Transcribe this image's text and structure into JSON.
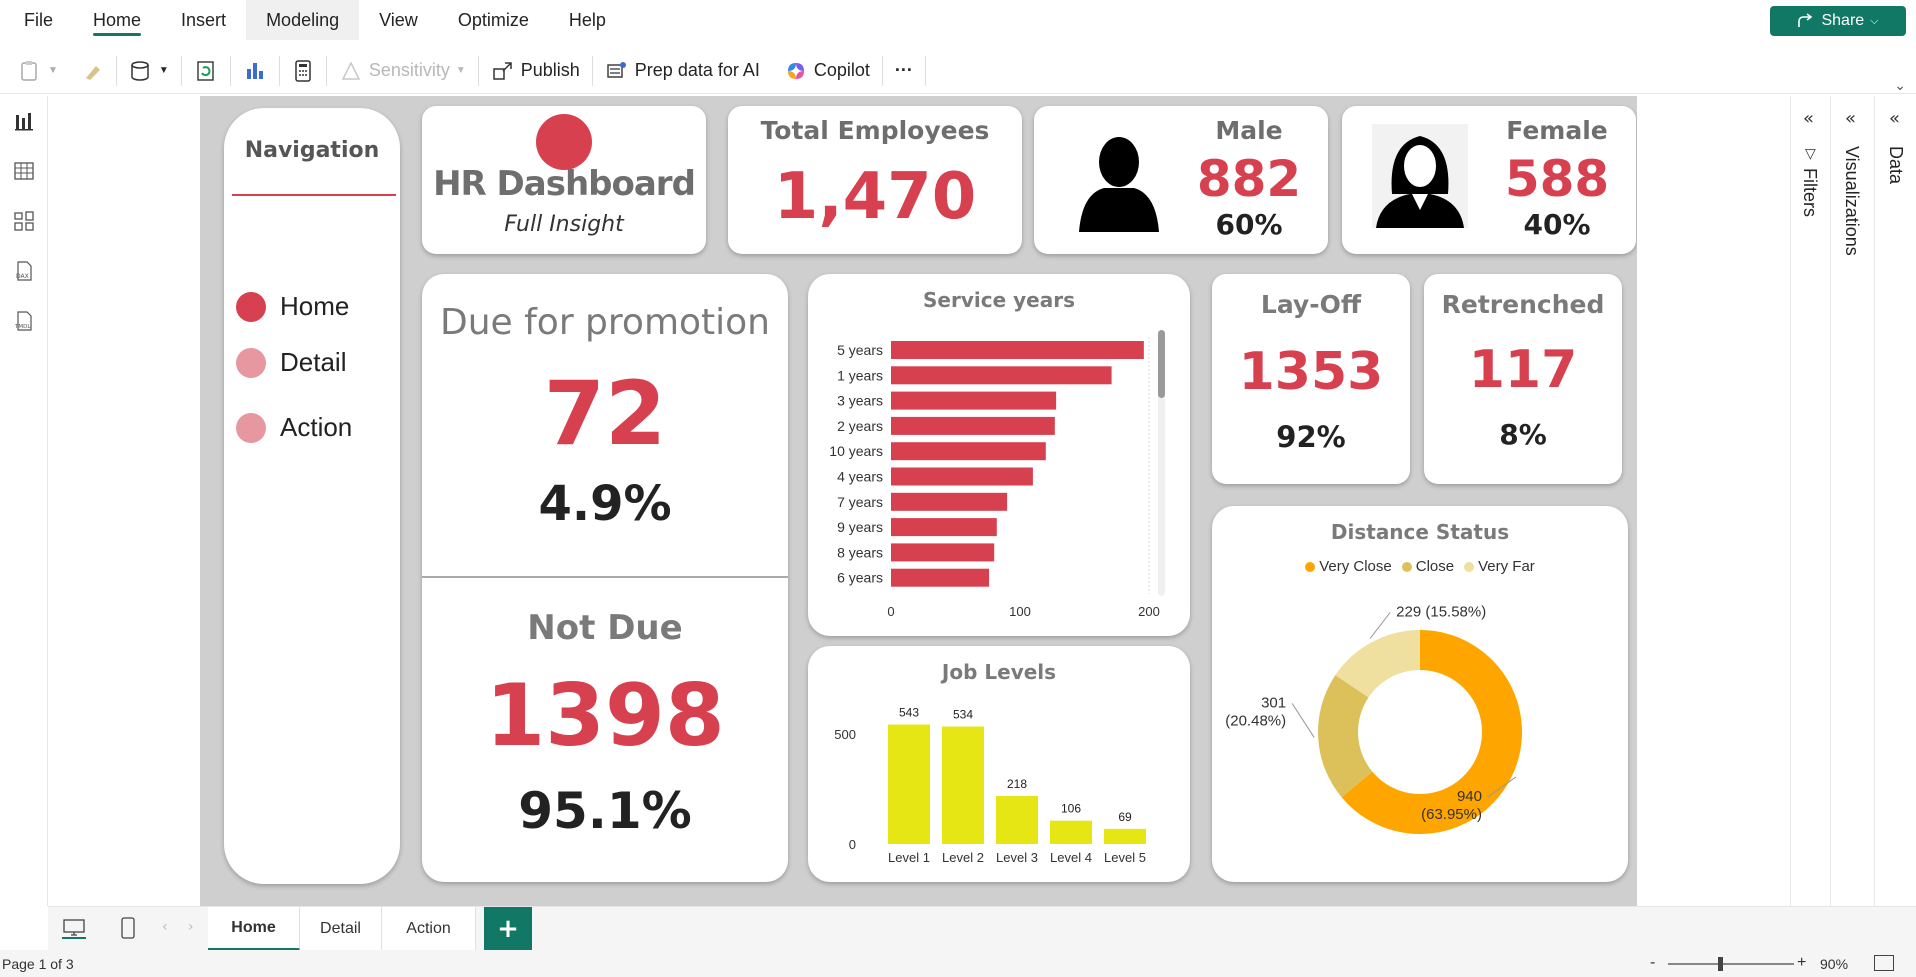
{
  "menu": {
    "items": [
      "File",
      "Home",
      "Insert",
      "Modeling",
      "View",
      "Optimize",
      "Help"
    ],
    "share_label": "Share"
  },
  "ribbon": {
    "sensitivity_label": "Sensitivity",
    "publish_label": "Publish",
    "prep_label": "Prep data for AI",
    "copilot_label": "Copilot",
    "more_label": "···"
  },
  "navigation": {
    "title": "Navigation",
    "items": [
      "Home",
      "Detail",
      "Action"
    ]
  },
  "title_card": {
    "title": "HR Dashboard",
    "subtitle": "Full Insight"
  },
  "total_employees": {
    "label": "Total Employees",
    "value": "1,470"
  },
  "male": {
    "label": "Male",
    "value": "882",
    "pct": "60%"
  },
  "female": {
    "label": "Female",
    "value": "588",
    "pct": "40%"
  },
  "promotion": {
    "due_label": "Due for promotion",
    "due_value": "72",
    "due_pct": "4.9%",
    "notdue_label": "Not Due",
    "notdue_value": "1398",
    "notdue_pct": "95.1%"
  },
  "layoff": {
    "label": "Lay-Off",
    "value": "1353",
    "pct": "92%"
  },
  "retrenched": {
    "label": "Retrenched",
    "value": "117",
    "pct": "8%"
  },
  "colors": {
    "accent": "#d6404f",
    "brand": "#117865",
    "yellow": "#e5e613",
    "orange": "#ffa500",
    "gold": "#dcc15a",
    "pale": "#efe0a0"
  },
  "chart_data": [
    {
      "type": "bar",
      "title": "Service years",
      "orientation": "horizontal",
      "categories": [
        "5 years",
        "1 years",
        "3 years",
        "2 years",
        "10 years",
        "4 years",
        "7 years",
        "9 years",
        "8 years",
        "6 years"
      ],
      "values": [
        196,
        171,
        128,
        127,
        120,
        110,
        90,
        82,
        80,
        76
      ],
      "xticks": [
        "0",
        "100",
        "200"
      ],
      "xlim": [
        0,
        200
      ],
      "grid": false
    },
    {
      "type": "bar",
      "title": "Job Levels",
      "categories": [
        "Level 1",
        "Level 2",
        "Level 3",
        "Level 4",
        "Level 5"
      ],
      "values": [
        543,
        534,
        218,
        106,
        69
      ],
      "data_labels": [
        "543",
        "534",
        "218",
        "106",
        "69"
      ],
      "yticks": [
        "0",
        "500"
      ],
      "ylim": [
        0,
        600
      ],
      "grid": false
    },
    {
      "type": "pie",
      "donut": true,
      "title": "Distance Status",
      "legend": [
        "Very Close",
        "Close",
        "Very Far"
      ],
      "legend_position": "top-center",
      "values": [
        940,
        301,
        229
      ],
      "data_labels": [
        "940\n(63.95%)",
        "301\n(20.48%)",
        "229 (15.58%)"
      ],
      "colors": [
        "#ffa500",
        "#dcc15a",
        "#efe0a0"
      ]
    }
  ],
  "right_panes": {
    "filters": "Filters",
    "visualizations": "Visualizations",
    "data": "Data"
  },
  "page_tabs": [
    "Home",
    "Detail",
    "Action"
  ],
  "add_page": "+",
  "status": {
    "page": "Page 1 of 3",
    "zoom": "90%",
    "zoom_minus": "-",
    "zoom_plus": "+"
  }
}
